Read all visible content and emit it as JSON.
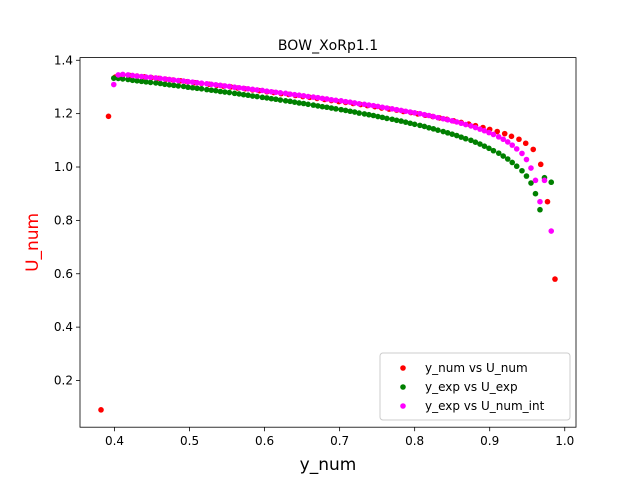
{
  "chart_data": {
    "type": "scatter",
    "title": "BOW_XoRp1.1",
    "xlabel": "y_num",
    "ylabel": "U_num",
    "ylabel_color": "#ff0000",
    "xlim": [
      0.354,
      1.015
    ],
    "ylim": [
      0.025,
      1.41
    ],
    "xticks": [
      0.4,
      0.5,
      0.6,
      0.7,
      0.8,
      0.9,
      1.0
    ],
    "xtick_labels": [
      "0.4",
      "0.5",
      "0.6",
      "0.7",
      "0.8",
      "0.9",
      "1.0"
    ],
    "yticks": [
      0.2,
      0.4,
      0.6,
      0.8,
      1.0,
      1.2,
      1.4
    ],
    "ytick_labels": [
      "0.2",
      "0.4",
      "0.6",
      "0.8",
      "1.0",
      "1.2",
      "1.4"
    ],
    "grid": false,
    "legend_position": "lower-right",
    "series": [
      {
        "name": "y_num vs U_num",
        "color": "#ff0000",
        "points": [
          [
            0.382,
            0.09
          ],
          [
            0.392,
            1.19
          ],
          [
            0.401,
            1.337
          ],
          [
            0.411,
            1.345
          ],
          [
            0.42,
            1.343
          ],
          [
            0.43,
            1.341
          ],
          [
            0.44,
            1.338
          ],
          [
            0.449,
            1.335
          ],
          [
            0.459,
            1.332
          ],
          [
            0.468,
            1.329
          ],
          [
            0.478,
            1.326
          ],
          [
            0.488,
            1.323
          ],
          [
            0.497,
            1.32
          ],
          [
            0.507,
            1.316
          ],
          [
            0.516,
            1.313
          ],
          [
            0.526,
            1.31
          ],
          [
            0.536,
            1.306
          ],
          [
            0.545,
            1.303
          ],
          [
            0.555,
            1.3
          ],
          [
            0.564,
            1.296
          ],
          [
            0.574,
            1.293
          ],
          [
            0.584,
            1.289
          ],
          [
            0.593,
            1.286
          ],
          [
            0.603,
            1.282
          ],
          [
            0.612,
            1.279
          ],
          [
            0.622,
            1.275
          ],
          [
            0.632,
            1.272
          ],
          [
            0.641,
            1.268
          ],
          [
            0.651,
            1.264
          ],
          [
            0.66,
            1.261
          ],
          [
            0.67,
            1.257
          ],
          [
            0.68,
            1.253
          ],
          [
            0.689,
            1.249
          ],
          [
            0.699,
            1.245
          ],
          [
            0.708,
            1.242
          ],
          [
            0.718,
            1.238
          ],
          [
            0.728,
            1.234
          ],
          [
            0.737,
            1.23
          ],
          [
            0.747,
            1.226
          ],
          [
            0.756,
            1.221
          ],
          [
            0.766,
            1.217
          ],
          [
            0.776,
            1.213
          ],
          [
            0.785,
            1.208
          ],
          [
            0.795,
            1.204
          ],
          [
            0.804,
            1.199
          ],
          [
            0.814,
            1.194
          ],
          [
            0.824,
            1.189
          ],
          [
            0.833,
            1.184
          ],
          [
            0.843,
            1.179
          ],
          [
            0.852,
            1.173
          ],
          [
            0.862,
            1.167
          ],
          [
            0.872,
            1.161
          ],
          [
            0.881,
            1.155
          ],
          [
            0.891,
            1.148
          ],
          [
            0.9,
            1.141
          ],
          [
            0.91,
            1.133
          ],
          [
            0.92,
            1.125
          ],
          [
            0.929,
            1.115
          ],
          [
            0.939,
            1.104
          ],
          [
            0.948,
            1.089
          ],
          [
            0.958,
            1.066
          ],
          [
            0.968,
            1.01
          ],
          [
            0.977,
            0.87
          ],
          [
            0.987,
            0.58
          ]
        ]
      },
      {
        "name": "y_exp vs U_exp",
        "color": "#008000",
        "points": [
          [
            0.399,
            1.333
          ],
          [
            0.405,
            1.332
          ],
          [
            0.411,
            1.33
          ],
          [
            0.418,
            1.328
          ],
          [
            0.424,
            1.325
          ],
          [
            0.43,
            1.323
          ],
          [
            0.436,
            1.321
          ],
          [
            0.442,
            1.319
          ],
          [
            0.448,
            1.317
          ],
          [
            0.455,
            1.315
          ],
          [
            0.461,
            1.313
          ],
          [
            0.467,
            1.31
          ],
          [
            0.473,
            1.308
          ],
          [
            0.479,
            1.306
          ],
          [
            0.485,
            1.304
          ],
          [
            0.492,
            1.302
          ],
          [
            0.498,
            1.299
          ],
          [
            0.504,
            1.297
          ],
          [
            0.51,
            1.295
          ],
          [
            0.516,
            1.293
          ],
          [
            0.523,
            1.29
          ],
          [
            0.529,
            1.288
          ],
          [
            0.535,
            1.286
          ],
          [
            0.541,
            1.283
          ],
          [
            0.547,
            1.281
          ],
          [
            0.553,
            1.279
          ],
          [
            0.56,
            1.276
          ],
          [
            0.566,
            1.274
          ],
          [
            0.572,
            1.271
          ],
          [
            0.578,
            1.269
          ],
          [
            0.584,
            1.266
          ],
          [
            0.59,
            1.264
          ],
          [
            0.597,
            1.261
          ],
          [
            0.603,
            1.259
          ],
          [
            0.609,
            1.256
          ],
          [
            0.615,
            1.254
          ],
          [
            0.621,
            1.251
          ],
          [
            0.628,
            1.248
          ],
          [
            0.634,
            1.246
          ],
          [
            0.64,
            1.243
          ],
          [
            0.646,
            1.24
          ],
          [
            0.652,
            1.238
          ],
          [
            0.658,
            1.235
          ],
          [
            0.665,
            1.232
          ],
          [
            0.671,
            1.229
          ],
          [
            0.677,
            1.226
          ],
          [
            0.683,
            1.224
          ],
          [
            0.689,
            1.221
          ],
          [
            0.695,
            1.218
          ],
          [
            0.702,
            1.215
          ],
          [
            0.708,
            1.212
          ],
          [
            0.714,
            1.209
          ],
          [
            0.72,
            1.206
          ],
          [
            0.726,
            1.202
          ],
          [
            0.733,
            1.199
          ],
          [
            0.739,
            1.196
          ],
          [
            0.745,
            1.193
          ],
          [
            0.751,
            1.189
          ],
          [
            0.757,
            1.186
          ],
          [
            0.763,
            1.182
          ],
          [
            0.77,
            1.179
          ],
          [
            0.776,
            1.175
          ],
          [
            0.782,
            1.172
          ],
          [
            0.788,
            1.168
          ],
          [
            0.794,
            1.164
          ],
          [
            0.8,
            1.16
          ],
          [
            0.807,
            1.156
          ],
          [
            0.813,
            1.152
          ],
          [
            0.819,
            1.147
          ],
          [
            0.825,
            1.143
          ],
          [
            0.831,
            1.138
          ],
          [
            0.838,
            1.133
          ],
          [
            0.844,
            1.128
          ],
          [
            0.85,
            1.123
          ],
          [
            0.856,
            1.118
          ],
          [
            0.862,
            1.112
          ],
          [
            0.868,
            1.106
          ],
          [
            0.875,
            1.1
          ],
          [
            0.881,
            1.093
          ],
          [
            0.887,
            1.086
          ],
          [
            0.893,
            1.078
          ],
          [
            0.899,
            1.07
          ],
          [
            0.905,
            1.061
          ],
          [
            0.912,
            1.052
          ],
          [
            0.918,
            1.041
          ],
          [
            0.924,
            1.03
          ],
          [
            0.93,
            1.017
          ],
          [
            0.936,
            1.003
          ],
          [
            0.943,
            0.986
          ],
          [
            0.949,
            0.966
          ],
          [
            0.955,
            0.94
          ],
          [
            0.961,
            0.9
          ],
          [
            0.967,
            0.84
          ],
          [
            0.973,
            0.96
          ],
          [
            0.982,
            0.943
          ]
        ]
      },
      {
        "name": "y_exp vs U_num_int",
        "color": "#ff00ff",
        "points": [
          [
            0.399,
            1.309
          ],
          [
            0.405,
            1.345
          ],
          [
            0.411,
            1.347
          ],
          [
            0.418,
            1.345
          ],
          [
            0.424,
            1.343
          ],
          [
            0.43,
            1.341
          ],
          [
            0.436,
            1.339
          ],
          [
            0.442,
            1.337
          ],
          [
            0.448,
            1.336
          ],
          [
            0.455,
            1.334
          ],
          [
            0.461,
            1.332
          ],
          [
            0.467,
            1.33
          ],
          [
            0.473,
            1.328
          ],
          [
            0.479,
            1.326
          ],
          [
            0.485,
            1.324
          ],
          [
            0.492,
            1.322
          ],
          [
            0.498,
            1.32
          ],
          [
            0.504,
            1.318
          ],
          [
            0.51,
            1.316
          ],
          [
            0.516,
            1.314
          ],
          [
            0.523,
            1.312
          ],
          [
            0.529,
            1.31
          ],
          [
            0.535,
            1.308
          ],
          [
            0.541,
            1.306
          ],
          [
            0.547,
            1.304
          ],
          [
            0.553,
            1.302
          ],
          [
            0.56,
            1.299
          ],
          [
            0.566,
            1.297
          ],
          [
            0.572,
            1.295
          ],
          [
            0.578,
            1.293
          ],
          [
            0.584,
            1.291
          ],
          [
            0.59,
            1.289
          ],
          [
            0.597,
            1.287
          ],
          [
            0.603,
            1.284
          ],
          [
            0.609,
            1.282
          ],
          [
            0.615,
            1.28
          ],
          [
            0.621,
            1.278
          ],
          [
            0.628,
            1.276
          ],
          [
            0.634,
            1.273
          ],
          [
            0.64,
            1.271
          ],
          [
            0.646,
            1.269
          ],
          [
            0.652,
            1.267
          ],
          [
            0.658,
            1.264
          ],
          [
            0.665,
            1.262
          ],
          [
            0.671,
            1.26
          ],
          [
            0.677,
            1.257
          ],
          [
            0.683,
            1.255
          ],
          [
            0.689,
            1.252
          ],
          [
            0.695,
            1.25
          ],
          [
            0.702,
            1.248
          ],
          [
            0.708,
            1.245
          ],
          [
            0.714,
            1.243
          ],
          [
            0.72,
            1.24
          ],
          [
            0.726,
            1.237
          ],
          [
            0.733,
            1.235
          ],
          [
            0.739,
            1.232
          ],
          [
            0.745,
            1.23
          ],
          [
            0.751,
            1.227
          ],
          [
            0.757,
            1.224
          ],
          [
            0.763,
            1.221
          ],
          [
            0.77,
            1.218
          ],
          [
            0.776,
            1.215
          ],
          [
            0.782,
            1.212
          ],
          [
            0.788,
            1.209
          ],
          [
            0.794,
            1.206
          ],
          [
            0.8,
            1.203
          ],
          [
            0.807,
            1.2
          ],
          [
            0.813,
            1.196
          ],
          [
            0.819,
            1.193
          ],
          [
            0.825,
            1.189
          ],
          [
            0.831,
            1.185
          ],
          [
            0.838,
            1.181
          ],
          [
            0.844,
            1.177
          ],
          [
            0.85,
            1.173
          ],
          [
            0.856,
            1.169
          ],
          [
            0.862,
            1.164
          ],
          [
            0.868,
            1.159
          ],
          [
            0.875,
            1.154
          ],
          [
            0.881,
            1.148
          ],
          [
            0.887,
            1.142
          ],
          [
            0.893,
            1.136
          ],
          [
            0.899,
            1.129
          ],
          [
            0.905,
            1.122
          ],
          [
            0.912,
            1.113
          ],
          [
            0.918,
            1.104
          ],
          [
            0.924,
            1.094
          ],
          [
            0.93,
            1.082
          ],
          [
            0.936,
            1.068
          ],
          [
            0.943,
            1.051
          ],
          [
            0.949,
            1.028
          ],
          [
            0.955,
            0.996
          ],
          [
            0.961,
            0.95
          ],
          [
            0.967,
            0.87
          ],
          [
            0.973,
            0.95
          ],
          [
            0.982,
            0.76
          ]
        ]
      }
    ]
  }
}
